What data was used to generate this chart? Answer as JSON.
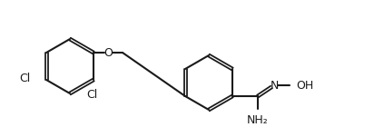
{
  "bg_color": "#ffffff",
  "line_color": "#1a1a1a",
  "line_width": 1.5,
  "font_size": 9,
  "font_color": "#1a1a1a",
  "labels": {
    "Cl_top": "Cl",
    "Cl_bot": "Cl",
    "O": "O",
    "N": "N",
    "OH": "OH",
    "NH2": "NH₂"
  }
}
